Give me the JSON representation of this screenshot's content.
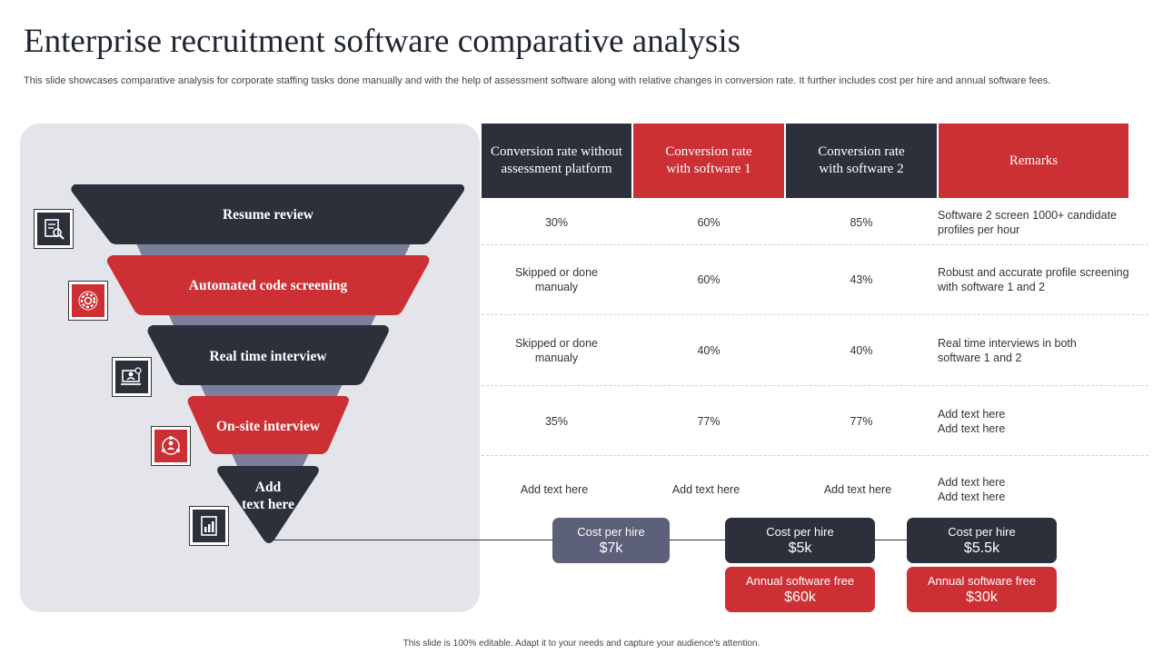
{
  "slide": {
    "title": "Enterprise recruitment software comparative analysis",
    "subtitle": "This slide showcases comparative analysis for corporate staffing tasks done manually and with the help of assessment software along with relative changes in conversion rate. It further includes cost per hire and annual software fees.",
    "footer": "This slide is 100% editable.  Adapt it to your needs and capture your audience's attention."
  },
  "colors": {
    "dark": "#2b303b",
    "red": "#cc2f34",
    "slate": "#5c6079",
    "panel": "#e4e5ea",
    "funnel_back": "#7c7f9a"
  },
  "funnel": {
    "stages": [
      {
        "label": "Resume review",
        "icon": "resume-review-icon"
      },
      {
        "label": "Automated code screening",
        "icon": "gear-screening-icon"
      },
      {
        "label": "Real time interview",
        "icon": "video-interview-icon"
      },
      {
        "label": "On-site interview",
        "icon": "team-interview-icon"
      },
      {
        "label": "Add\ntext here",
        "icon": "report-chart-icon"
      }
    ]
  },
  "table": {
    "headers": [
      "Conversion rate without assessment platform",
      "Conversion rate with software 1",
      "Conversion rate with software 2",
      "Remarks"
    ],
    "rows": [
      {
        "manual": "30%",
        "software1": "60%",
        "software2": "85%",
        "remarks": "Software 2 screen 1000+ candidate profiles per hour"
      },
      {
        "manual": "Skipped or done manualy",
        "software1": "60%",
        "software2": "43%",
        "remarks": "Robust and accurate profile screening with software 1 and 2"
      },
      {
        "manual": "Skipped or done manualy",
        "software1": "40%",
        "software2": "40%",
        "remarks": "Real time interviews in both software 1 and 2"
      },
      {
        "manual": "35%",
        "software1": "77%",
        "software2": "77%",
        "remarks": "Add text here Add text here"
      },
      {
        "manual": "Add text here",
        "software1": "Add text here",
        "software2": "Add text here",
        "remarks": "Add text here Add text here"
      }
    ]
  },
  "costs": {
    "manual": {
      "label": "Cost per hire",
      "value": "$7k"
    },
    "software1": {
      "cost_label": "Cost per hire",
      "cost_value": "$5k",
      "fee_label": "Annual software free",
      "fee_value": "$60k"
    },
    "software2": {
      "cost_label": "Cost per hire",
      "cost_value": "$5.5k",
      "fee_label": "Annual software free",
      "fee_value": "$30k"
    }
  }
}
